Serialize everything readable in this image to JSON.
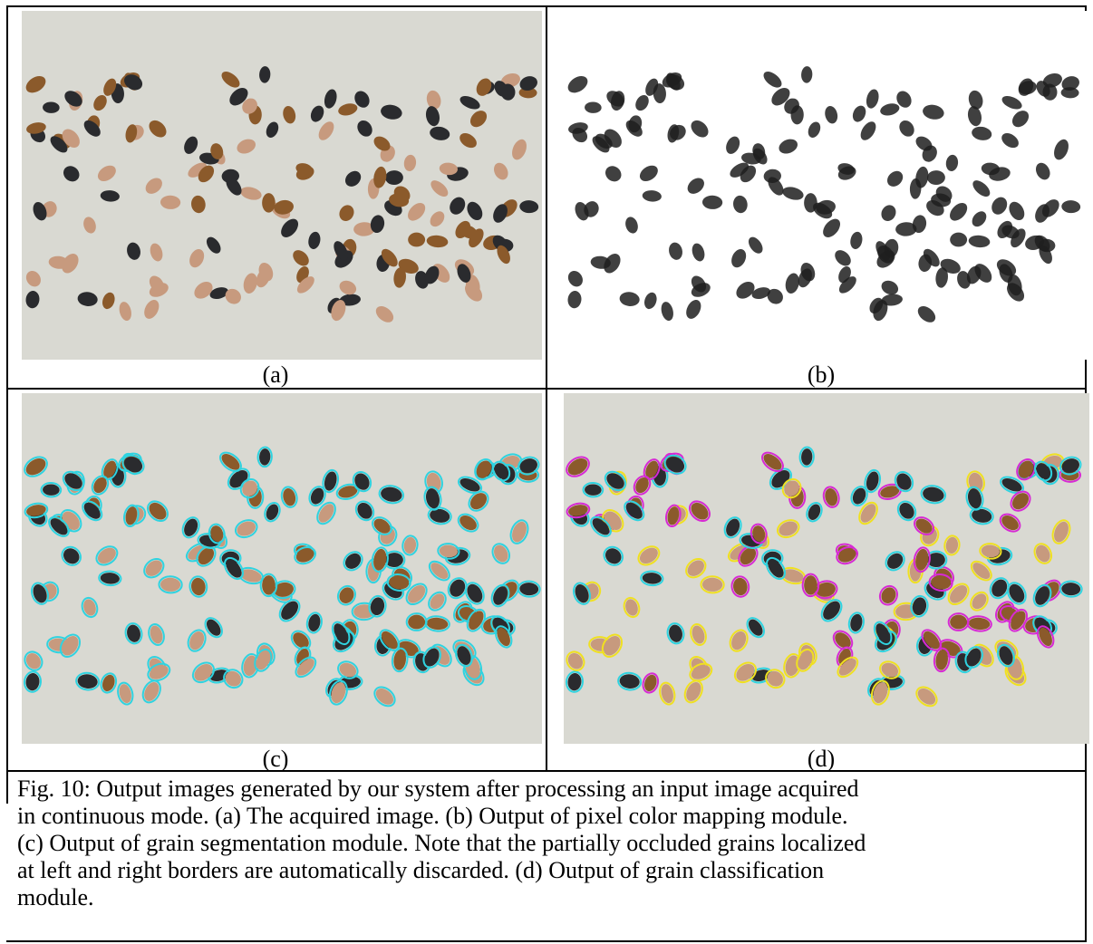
{
  "figure": {
    "panels": [
      {
        "id": "a",
        "label": "(a)",
        "content": "acquired-image"
      },
      {
        "id": "b",
        "label": "(b)",
        "content": "pixel-color-map"
      },
      {
        "id": "c",
        "label": "(c)",
        "content": "segmentation"
      },
      {
        "id": "d",
        "label": "(d)",
        "content": "classification"
      }
    ],
    "caption_lines": [
      "Fig. 10: Output images generated by our system after processing an input image acquired",
      "in continuous mode. (a) The acquired image. (b) Output of pixel color mapping module.",
      "(c) Output of grain segmentation module. Note that the partially occluded grains localized",
      "at left and right borders are automatically discarded. (d) Output of grain classification",
      "module."
    ],
    "colors": {
      "background": "#d9d9d2",
      "bean_black": "#2a2b2e",
      "bean_brown": "#8b5a2b",
      "bean_pinto": "#c79a7e",
      "segment_outline": "#2fd3e0",
      "class_black": "#2fd3e0",
      "class_carioca": "#f0e020",
      "class_brown": "#d72ad4",
      "label_red": "#e01010"
    }
  }
}
